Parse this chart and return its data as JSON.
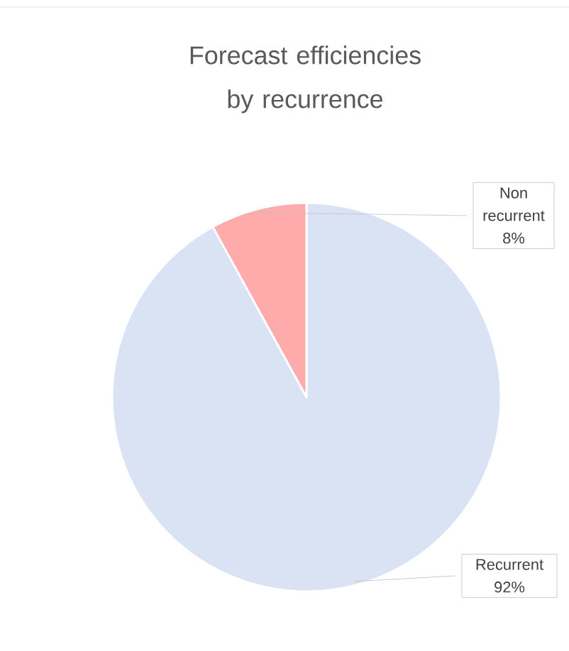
{
  "chart_data": {
    "type": "pie",
    "title": "Forecast efficiencies by recurrence",
    "categories": [
      "Recurrent",
      "Non recurrent"
    ],
    "values": [
      92,
      8
    ],
    "colors": [
      "#dae3f3",
      "#ffabab"
    ],
    "value_labels": [
      "92%",
      "8%"
    ]
  }
}
